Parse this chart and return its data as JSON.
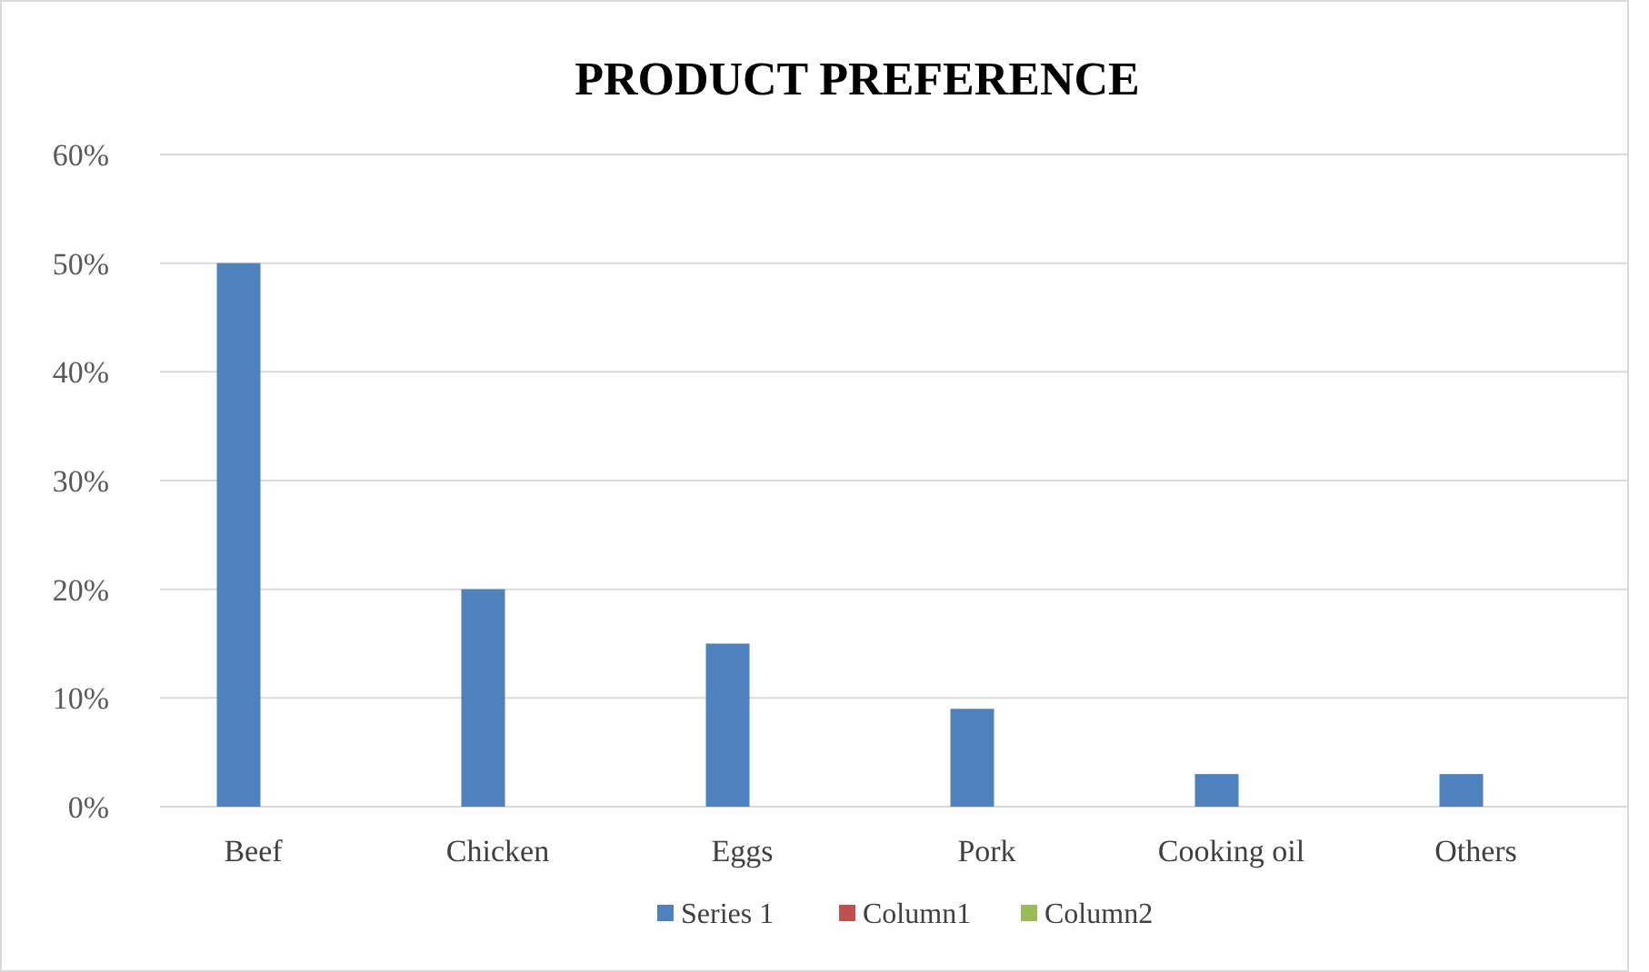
{
  "chart_data": {
    "type": "bar",
    "title": "PRODUCT PREFERENCE",
    "categories": [
      "Beef",
      "Chicken",
      "Eggs",
      "Pork",
      "Cooking oil",
      "Others"
    ],
    "series": [
      {
        "name": "Series 1",
        "color": "#4f81bd",
        "values": [
          50,
          20,
          15,
          9,
          3,
          3
        ]
      },
      {
        "name": "Column1",
        "color": "#c0504d",
        "values": [
          null,
          null,
          null,
          null,
          null,
          null
        ]
      },
      {
        "name": "Column2",
        "color": "#9bbb59",
        "values": [
          null,
          null,
          null,
          null,
          null,
          null
        ]
      }
    ],
    "ylim": [
      0,
      60
    ],
    "yticks": [
      {
        "value": 0,
        "label": "0%"
      },
      {
        "value": 10,
        "label": "10%"
      },
      {
        "value": 20,
        "label": "20%"
      },
      {
        "value": 30,
        "label": "30%"
      },
      {
        "value": 40,
        "label": "40%"
      },
      {
        "value": 50,
        "label": "50%"
      },
      {
        "value": 60,
        "label": "60%"
      }
    ],
    "grid": "y",
    "legend": "bottom"
  }
}
